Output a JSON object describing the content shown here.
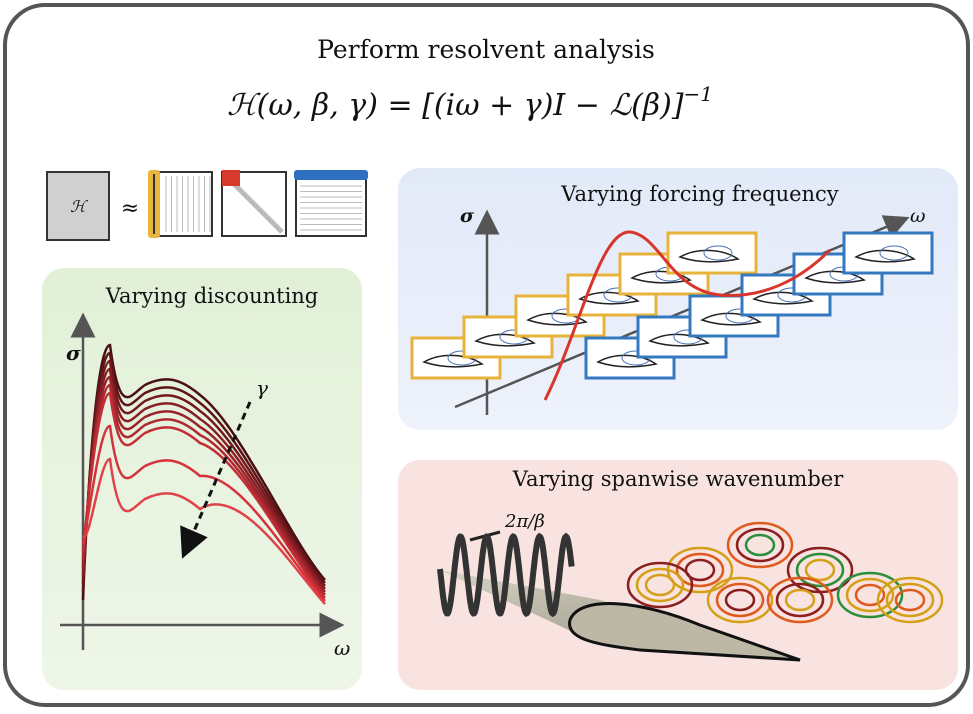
{
  "header": {
    "title": "Perform resolvent analysis",
    "equation": {
      "body": "ℋ(ω, β, γ) = [(iω + γ)I − ℒ(β)]",
      "exponent": "−1"
    }
  },
  "decomposition": {
    "operator": "ℋ",
    "approx": "≈"
  },
  "panels": [
    {
      "title": "Varying discounting",
      "y_axis": "σ",
      "x_axis": "ω",
      "arrow_label": "γ"
    },
    {
      "title": "Varying forcing frequency",
      "y_axis": "σ",
      "x_axis": "ω"
    },
    {
      "title": "Varying spanwise wavenumber",
      "annotation": "2π/β"
    }
  ]
}
